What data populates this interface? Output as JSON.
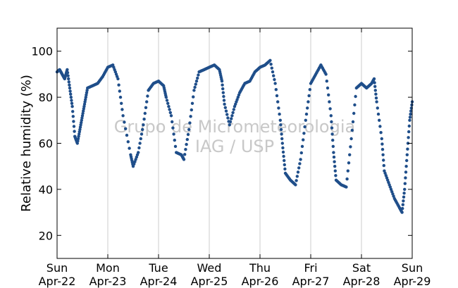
{
  "chart_data": {
    "type": "scatter",
    "title": "",
    "xlabel": "",
    "ylabel": "Relative humidity (%)",
    "watermark": [
      "Grupo de Micrometeorologia",
      "IAG / USP"
    ],
    "xlim": [
      0,
      7
    ],
    "ylim": [
      10,
      110
    ],
    "yticks": [
      20,
      40,
      60,
      80,
      100
    ],
    "x_unit": "days since Sun Apr-22 00:00",
    "x_ticks": [
      {
        "x": 0,
        "day": "Sun",
        "date": "Apr-22"
      },
      {
        "x": 1,
        "day": "Mon",
        "date": "Apr-23"
      },
      {
        "x": 2,
        "day": "Tue",
        "date": "Apr-24"
      },
      {
        "x": 3,
        "day": "Wed",
        "date": "Apr-25"
      },
      {
        "x": 4,
        "day": "Thu",
        "date": "Apr-26"
      },
      {
        "x": 5,
        "day": "Fri",
        "date": "Apr-27"
      },
      {
        "x": 6,
        "day": "Sat",
        "date": "Apr-28"
      },
      {
        "x": 7,
        "day": "Sun",
        "date": "Apr-29"
      }
    ],
    "grid": "vertical",
    "marker_color": "#1f4e8a",
    "series": [
      {
        "name": "",
        "points": [
          [
            0.0,
            91
          ],
          [
            0.05,
            92
          ],
          [
            0.1,
            90
          ],
          [
            0.15,
            88
          ],
          [
            0.2,
            92
          ],
          [
            0.25,
            84
          ],
          [
            0.3,
            76
          ],
          [
            0.35,
            63
          ],
          [
            0.4,
            60
          ],
          [
            0.45,
            66
          ],
          [
            0.5,
            72
          ],
          [
            0.55,
            78
          ],
          [
            0.6,
            84
          ],
          [
            0.7,
            85
          ],
          [
            0.8,
            86
          ],
          [
            0.9,
            89
          ],
          [
            1.0,
            93
          ],
          [
            1.1,
            94
          ],
          [
            1.2,
            88
          ],
          [
            1.3,
            72
          ],
          [
            1.45,
            55
          ],
          [
            1.5,
            50
          ],
          [
            1.6,
            56
          ],
          [
            1.7,
            68
          ],
          [
            1.8,
            83
          ],
          [
            1.9,
            86
          ],
          [
            2.0,
            87
          ],
          [
            2.1,
            85
          ],
          [
            2.15,
            80
          ],
          [
            2.25,
            72
          ],
          [
            2.35,
            56
          ],
          [
            2.45,
            55
          ],
          [
            2.5,
            53
          ],
          [
            2.6,
            66
          ],
          [
            2.7,
            83
          ],
          [
            2.8,
            91
          ],
          [
            2.9,
            92
          ],
          [
            3.0,
            93
          ],
          [
            3.1,
            94
          ],
          [
            3.2,
            92
          ],
          [
            3.25,
            87
          ],
          [
            3.3,
            77
          ],
          [
            3.4,
            68
          ],
          [
            3.5,
            76
          ],
          [
            3.6,
            82
          ],
          [
            3.7,
            86
          ],
          [
            3.8,
            87
          ],
          [
            3.9,
            91
          ],
          [
            4.0,
            93
          ],
          [
            4.1,
            94
          ],
          [
            4.2,
            96
          ],
          [
            4.3,
            86
          ],
          [
            4.4,
            70
          ],
          [
            4.45,
            58
          ],
          [
            4.5,
            47
          ],
          [
            4.6,
            44
          ],
          [
            4.7,
            42
          ],
          [
            4.8,
            53
          ],
          [
            4.9,
            70
          ],
          [
            5.0,
            86
          ],
          [
            5.1,
            90
          ],
          [
            5.2,
            94
          ],
          [
            5.3,
            90
          ],
          [
            5.4,
            72
          ],
          [
            5.45,
            56
          ],
          [
            5.5,
            44
          ],
          [
            5.6,
            42
          ],
          [
            5.7,
            41
          ],
          [
            5.8,
            62
          ],
          [
            5.9,
            84
          ],
          [
            6.0,
            86
          ],
          [
            6.1,
            84
          ],
          [
            6.2,
            86
          ],
          [
            6.25,
            88
          ],
          [
            6.3,
            78
          ],
          [
            6.4,
            62
          ],
          [
            6.45,
            48
          ],
          [
            6.55,
            42
          ],
          [
            6.65,
            36
          ],
          [
            6.75,
            32
          ],
          [
            6.8,
            30
          ],
          [
            6.85,
            40
          ],
          [
            6.9,
            55
          ],
          [
            6.95,
            70
          ],
          [
            7.0,
            78
          ]
        ]
      }
    ]
  }
}
